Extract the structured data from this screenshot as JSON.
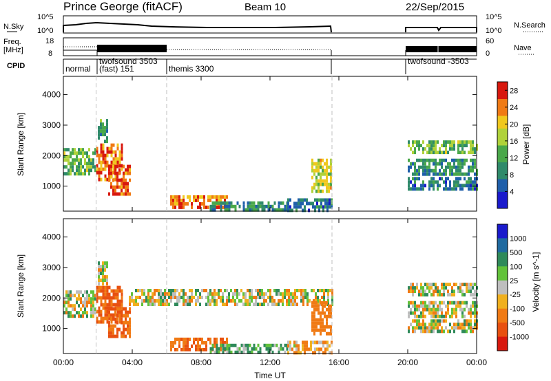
{
  "header": {
    "station": "Prince George (fitACF)",
    "beam": "Beam 10",
    "date": "22/Sep/2015"
  },
  "noise_panel": {
    "left_label": "N.Sky",
    "left_ticks": [
      "10^5",
      "10^0"
    ],
    "right_label": "N.Search",
    "right_ticks": [
      "10^5",
      "10^0"
    ]
  },
  "freq_panel": {
    "left_label_1": "Freq.",
    "left_label_2": "[MHz]",
    "left_ticks": [
      "18",
      "8"
    ],
    "right_label": "Nave",
    "right_ticks": [
      "60",
      "0"
    ]
  },
  "cpid_panel": {
    "label": "CPID",
    "segments": [
      "normal",
      "twofsound 3503",
      "(fast) 151",
      "themis 3300",
      "twofsound -3503"
    ]
  },
  "colors": {
    "power": [
      "#1a1acc",
      "#1f5faa",
      "#2f8a6a",
      "#4aa84a",
      "#b0d23a",
      "#f0c81e",
      "#f07a14",
      "#d8180e"
    ],
    "velocity": [
      "#1a1acc",
      "#1f6aa0",
      "#2f8a5a",
      "#62c23a",
      "#bebebe",
      "#f0b01e",
      "#f07a14",
      "#e85010",
      "#d8180e"
    ],
    "data_gap_shading": "#ffffff"
  },
  "chart_data": [
    {
      "type": "heatmap",
      "name": "Power",
      "xlabel": "Time UT",
      "ylabel": "Slant Range [km]",
      "x_ticks": [
        "00:00",
        "04:00",
        "08:00",
        "12:00",
        "16:00",
        "20:00",
        "00:00"
      ],
      "xlim_hours": [
        0,
        24
      ],
      "ylim": [
        180,
        4600
      ],
      "y_ticks": [
        1000,
        2000,
        3000,
        4000
      ],
      "colorbar_label": "Power [dB]",
      "colorbar_ticks": [
        4,
        8,
        12,
        16,
        20,
        24,
        28
      ],
      "colorbar_range": [
        0,
        30
      ],
      "data_gaps_hours": [
        [
          15.6,
          20.0
        ]
      ],
      "echo_regions": [
        {
          "t0": 0.0,
          "t1": 1.9,
          "r0": 1450,
          "r1": 2250,
          "dB": 14
        },
        {
          "t0": 1.9,
          "t1": 3.4,
          "r0": 1200,
          "r1": 2400,
          "dB": 24
        },
        {
          "t0": 2.6,
          "t1": 3.9,
          "r0": 700,
          "r1": 1700,
          "dB": 27
        },
        {
          "t0": 2.0,
          "t1": 2.6,
          "r0": 2500,
          "r1": 3200,
          "dB": 12
        },
        {
          "t0": 6.2,
          "t1": 9.5,
          "r0": 250,
          "r1": 700,
          "dB": 24
        },
        {
          "t0": 8.5,
          "t1": 13.0,
          "r0": 200,
          "r1": 500,
          "dB": 10
        },
        {
          "t0": 13.0,
          "t1": 15.6,
          "r0": 200,
          "r1": 600,
          "dB": 8
        },
        {
          "t0": 14.4,
          "t1": 15.6,
          "r0": 800,
          "r1": 1900,
          "dB": 18
        },
        {
          "t0": 20.0,
          "t1": 24.0,
          "r0": 2100,
          "r1": 2500,
          "dB": 14
        },
        {
          "t0": 20.0,
          "t1": 24.0,
          "r0": 1400,
          "r1": 1900,
          "dB": 10
        },
        {
          "t0": 20.0,
          "t1": 24.0,
          "r0": 900,
          "r1": 1300,
          "dB": 8
        }
      ]
    },
    {
      "type": "heatmap",
      "name": "Velocity",
      "xlabel": "Time UT",
      "ylabel": "Slant Range [km]",
      "x_ticks": [
        "00:00",
        "04:00",
        "08:00",
        "12:00",
        "16:00",
        "20:00",
        "00:00"
      ],
      "xlim_hours": [
        0,
        24
      ],
      "ylim": [
        180,
        4600
      ],
      "y_ticks": [
        1000,
        2000,
        3000,
        4000
      ],
      "colorbar_label": "Velocity [m s^-1]",
      "colorbar_ticks": [
        1000,
        500,
        100,
        25,
        -25,
        -100,
        -500,
        -1000
      ],
      "data_gaps_hours": [
        [
          15.6,
          20.0
        ]
      ],
      "echo_regions": [
        {
          "t0": 0.0,
          "t1": 1.9,
          "r0": 1450,
          "r1": 2250,
          "v": 0
        },
        {
          "t0": 1.9,
          "t1": 3.4,
          "r0": 1200,
          "r1": 2400,
          "v": -300
        },
        {
          "t0": 2.6,
          "t1": 3.9,
          "r0": 700,
          "r1": 1700,
          "v": -300
        },
        {
          "t0": 2.0,
          "t1": 2.6,
          "r0": 2500,
          "r1": 3200,
          "v": 0
        },
        {
          "t0": 3.8,
          "t1": 15.6,
          "r0": 1800,
          "r1": 2300,
          "v": 0
        },
        {
          "t0": 6.2,
          "t1": 9.5,
          "r0": 250,
          "r1": 700,
          "v": -300
        },
        {
          "t0": 8.5,
          "t1": 13.0,
          "r0": 200,
          "r1": 500,
          "v": 80
        },
        {
          "t0": 13.0,
          "t1": 15.6,
          "r0": 200,
          "r1": 600,
          "v": -60
        },
        {
          "t0": 14.4,
          "t1": 15.6,
          "r0": 800,
          "r1": 1900,
          "v": -200
        },
        {
          "t0": 20.0,
          "t1": 24.0,
          "r0": 2100,
          "r1": 2500,
          "v": 0
        },
        {
          "t0": 20.0,
          "t1": 24.0,
          "r0": 1400,
          "r1": 1900,
          "v": 0
        },
        {
          "t0": 20.0,
          "t1": 24.0,
          "r0": 900,
          "r1": 1300,
          "v": 0
        }
      ]
    }
  ]
}
